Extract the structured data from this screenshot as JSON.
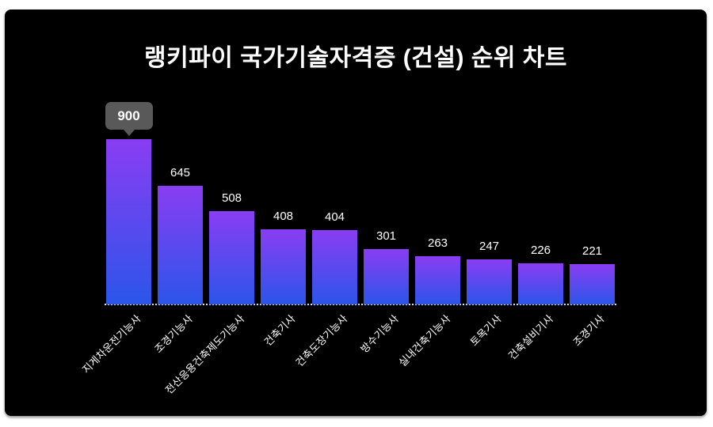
{
  "title": "랭키파이 국가기술자격증 (건설) 순위 차트",
  "tooltip": {
    "value": "900"
  },
  "colors": {
    "page_background": "#ffffff",
    "card_background": "#000000",
    "bar_gradient_top": "#8a3df3",
    "bar_gradient_bottom": "#2b55e9",
    "baseline": "#d9dde6",
    "tooltip_background": "#595959",
    "text": "#ffffff"
  },
  "chart_data": {
    "type": "bar",
    "title": "랭키파이 국가기술자격증 (건설) 순위 차트",
    "categories": [
      "지게차운전기능사",
      "조경기능사",
      "전산응용건축제도기능사",
      "건축기사",
      "건축도장기능사",
      "방수기능사",
      "실내건축기능사",
      "토목기사",
      "건축설비기사",
      "조경기사"
    ],
    "values": [
      900,
      645,
      508,
      408,
      404,
      301,
      263,
      247,
      226,
      221
    ],
    "xlabel": "",
    "ylabel": "",
    "ylim": [
      0,
      900
    ],
    "grid": false,
    "legend": "none",
    "value_labels": true,
    "category_label_rotation_deg": -45,
    "highlighted_index": 0,
    "highlighted_value_shown_as": "tooltip"
  }
}
